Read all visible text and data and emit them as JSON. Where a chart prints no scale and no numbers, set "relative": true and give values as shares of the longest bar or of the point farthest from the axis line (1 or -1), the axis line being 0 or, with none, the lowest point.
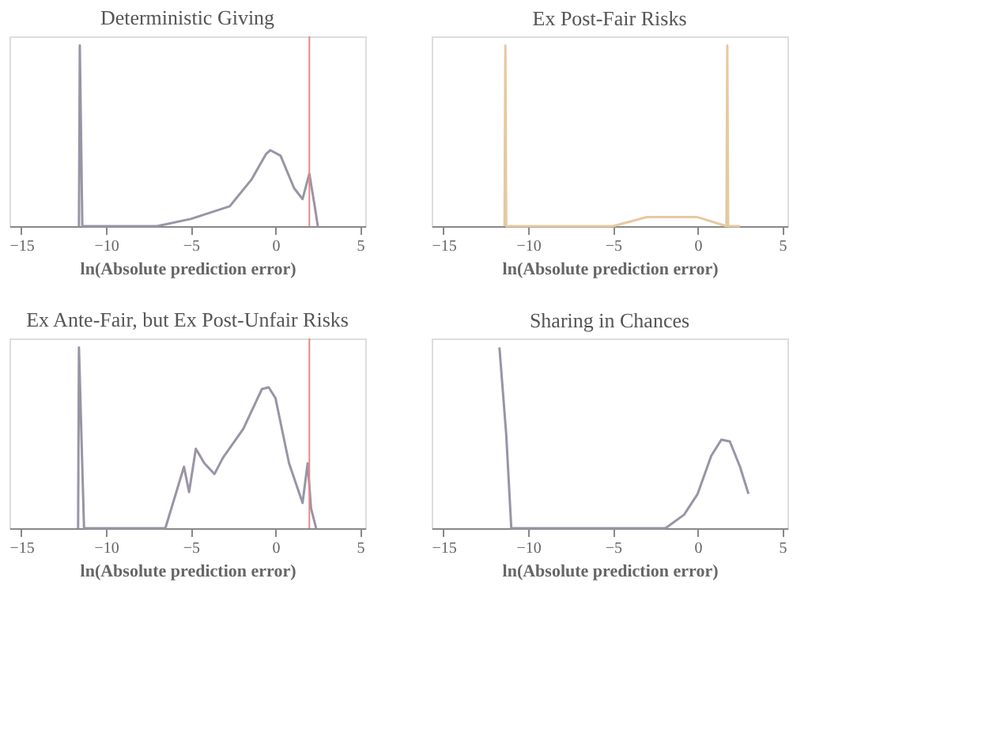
{
  "chart_data": [
    {
      "type": "line",
      "title": "Deterministic Giving",
      "xlabel": "ln(Absolute prediction error)",
      "relative": true,
      "tick_labels": "x",
      "grid": false,
      "xlim": [
        -15.7,
        5.3
      ],
      "xticks": [
        -15,
        -10,
        -5,
        0,
        5
      ],
      "series": [
        {
          "color": "#9a94a6",
          "x": [
            -11.6,
            -11.55,
            -11.4,
            -7,
            -5,
            -2.7,
            -1.4,
            -0.55,
            -0.3,
            0.3,
            1.1,
            1.6,
            2.0,
            2.3,
            2.5
          ],
          "values": [
            0,
            1,
            0,
            0,
            0.04,
            0.11,
            0.26,
            0.4,
            0.42,
            0.39,
            0.21,
            0.15,
            0.29,
            0.12,
            0
          ]
        }
      ],
      "ref_lines": [
        {
          "axis": "x",
          "value": 2.0,
          "color": "#e08a8a"
        }
      ]
    },
    {
      "type": "line",
      "title": "Ex Post-Fair Risks",
      "xlabel": "ln(Absolute prediction error)",
      "relative": true,
      "tick_labels": "x",
      "grid": false,
      "xlim": [
        -15.7,
        5.3
      ],
      "xticks": [
        -15,
        -10,
        -5,
        0,
        5
      ],
      "series": [
        {
          "color": "#e6c9a0",
          "x": [
            -11.4,
            -11.35,
            -11.3,
            -5,
            -3,
            0,
            1.7,
            1.75,
            1.8,
            2.5
          ],
          "values": [
            0,
            1,
            0,
            0,
            0.05,
            0.05,
            0,
            1,
            0,
            0
          ]
        }
      ]
    },
    {
      "type": "line",
      "title": "Ex Ante-Fair, but Ex Post-Unfair Risks",
      "xlabel": "ln(Absolute prediction error)",
      "relative": true,
      "tick_labels": "x",
      "grid": false,
      "xlim": [
        -15.7,
        5.3
      ],
      "xticks": [
        -15,
        -10,
        -5,
        0,
        5
      ],
      "series": [
        {
          "color": "#9a94a6",
          "x": [
            -11.65,
            -11.6,
            -11.3,
            -6.5,
            -5.4,
            -5.1,
            -4.7,
            -4.2,
            -3.6,
            -3.1,
            -1.9,
            -0.8,
            -0.4,
            0,
            0.8,
            1.6,
            1.9,
            2.1,
            2.4
          ],
          "values": [
            0,
            1,
            0,
            0,
            0.34,
            0.2,
            0.44,
            0.36,
            0.3,
            0.39,
            0.55,
            0.77,
            0.78,
            0.72,
            0.36,
            0.14,
            0.36,
            0.11,
            0
          ]
        }
      ],
      "ref_lines": [
        {
          "axis": "x",
          "value": 2.0,
          "color": "#e08a8a"
        }
      ]
    },
    {
      "type": "line",
      "title": "Sharing in Chances",
      "xlabel": "ln(Absolute prediction error)",
      "relative": true,
      "tick_labels": "x",
      "grid": false,
      "xlim": [
        -15.7,
        5.3
      ],
      "xticks": [
        -15,
        -10,
        -5,
        0,
        5
      ],
      "series": [
        {
          "color": "#9a94a6",
          "x": [
            -11.7,
            -11.3,
            -11.0,
            -1.9,
            -0.8,
            0,
            0.8,
            1.4,
            1.9,
            2.5,
            3.0
          ],
          "values": [
            1,
            0.52,
            0,
            0,
            0.075,
            0.19,
            0.4,
            0.49,
            0.48,
            0.34,
            0.19
          ]
        }
      ]
    }
  ]
}
